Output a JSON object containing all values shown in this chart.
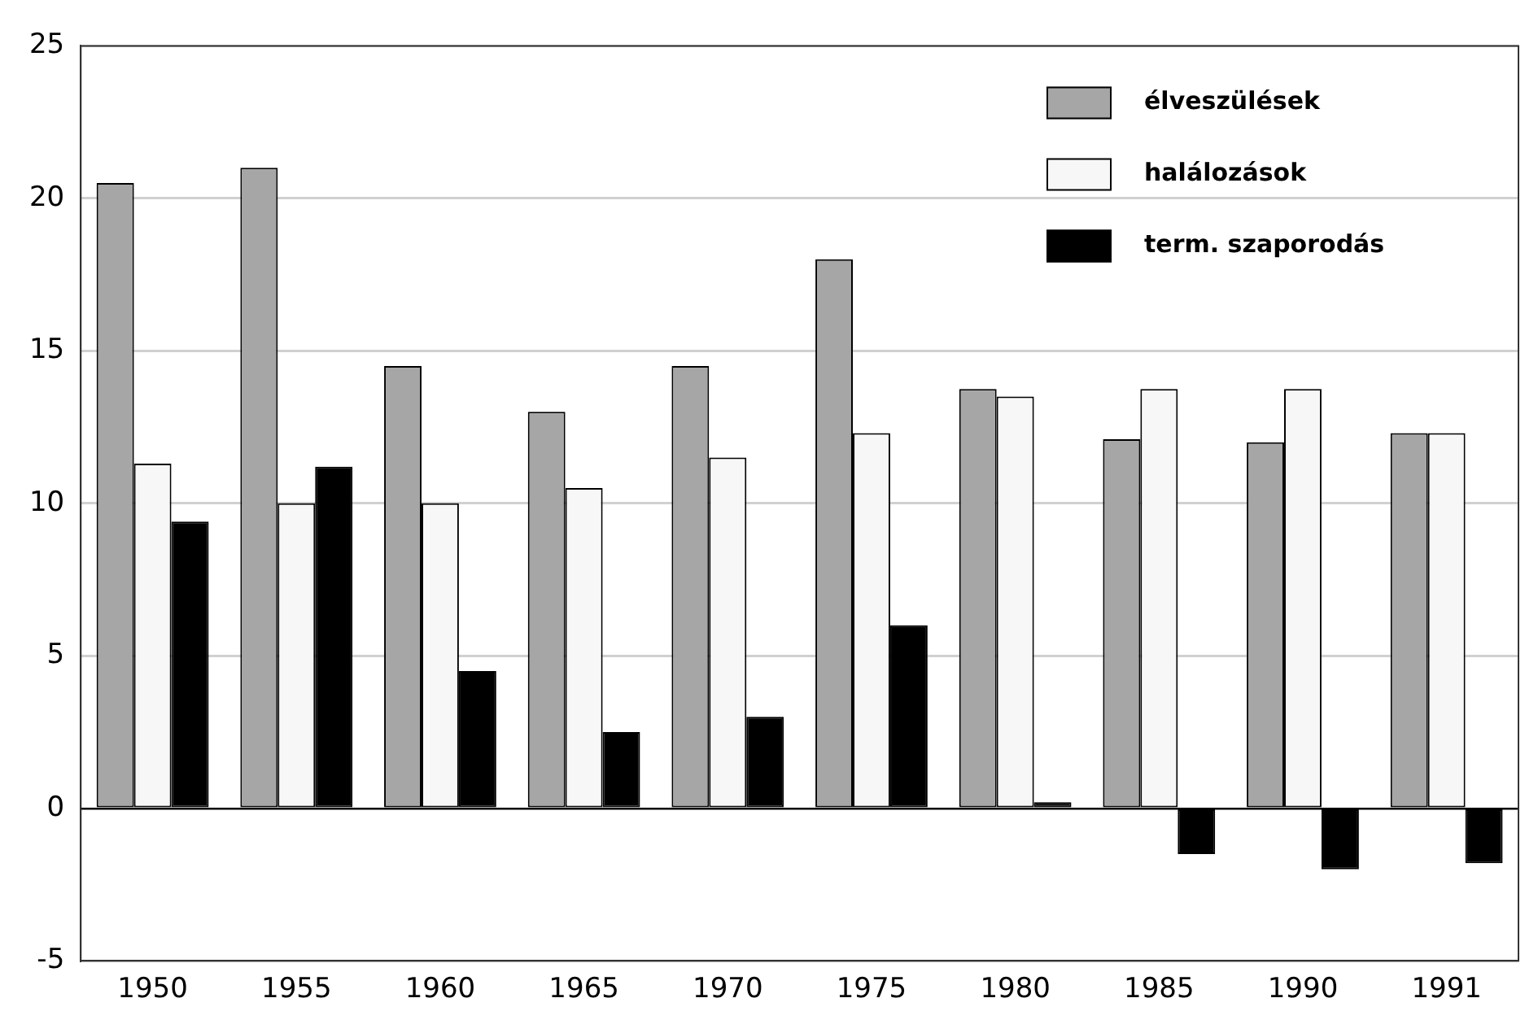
{
  "chart_data": {
    "type": "bar",
    "categories": [
      "1950",
      "1955",
      "1960",
      "1965",
      "1970",
      "1975",
      "1980",
      "1985",
      "1990",
      "1991"
    ],
    "series": [
      {
        "name": "élveszülések",
        "color": "#a6a6a6",
        "values": [
          20.5,
          21.0,
          14.5,
          13.0,
          14.5,
          18.0,
          13.75,
          12.1,
          12.0,
          12.3
        ]
      },
      {
        "name": "halálozások",
        "color": "#f7f7f7",
        "values": [
          11.3,
          10.0,
          10.0,
          10.5,
          11.5,
          12.3,
          13.5,
          13.75,
          13.75,
          12.3
        ]
      },
      {
        "name": "term. szaporodás",
        "color": "#000000",
        "values": [
          9.4,
          11.2,
          4.5,
          2.5,
          3.0,
          6.0,
          0.2,
          -1.5,
          -2.0,
          -1.8
        ]
      }
    ],
    "ylim": [
      -5,
      25
    ],
    "yticks": [
      -5,
      0,
      5,
      10,
      15,
      20,
      25
    ],
    "grid": "y",
    "legend": "top right"
  }
}
